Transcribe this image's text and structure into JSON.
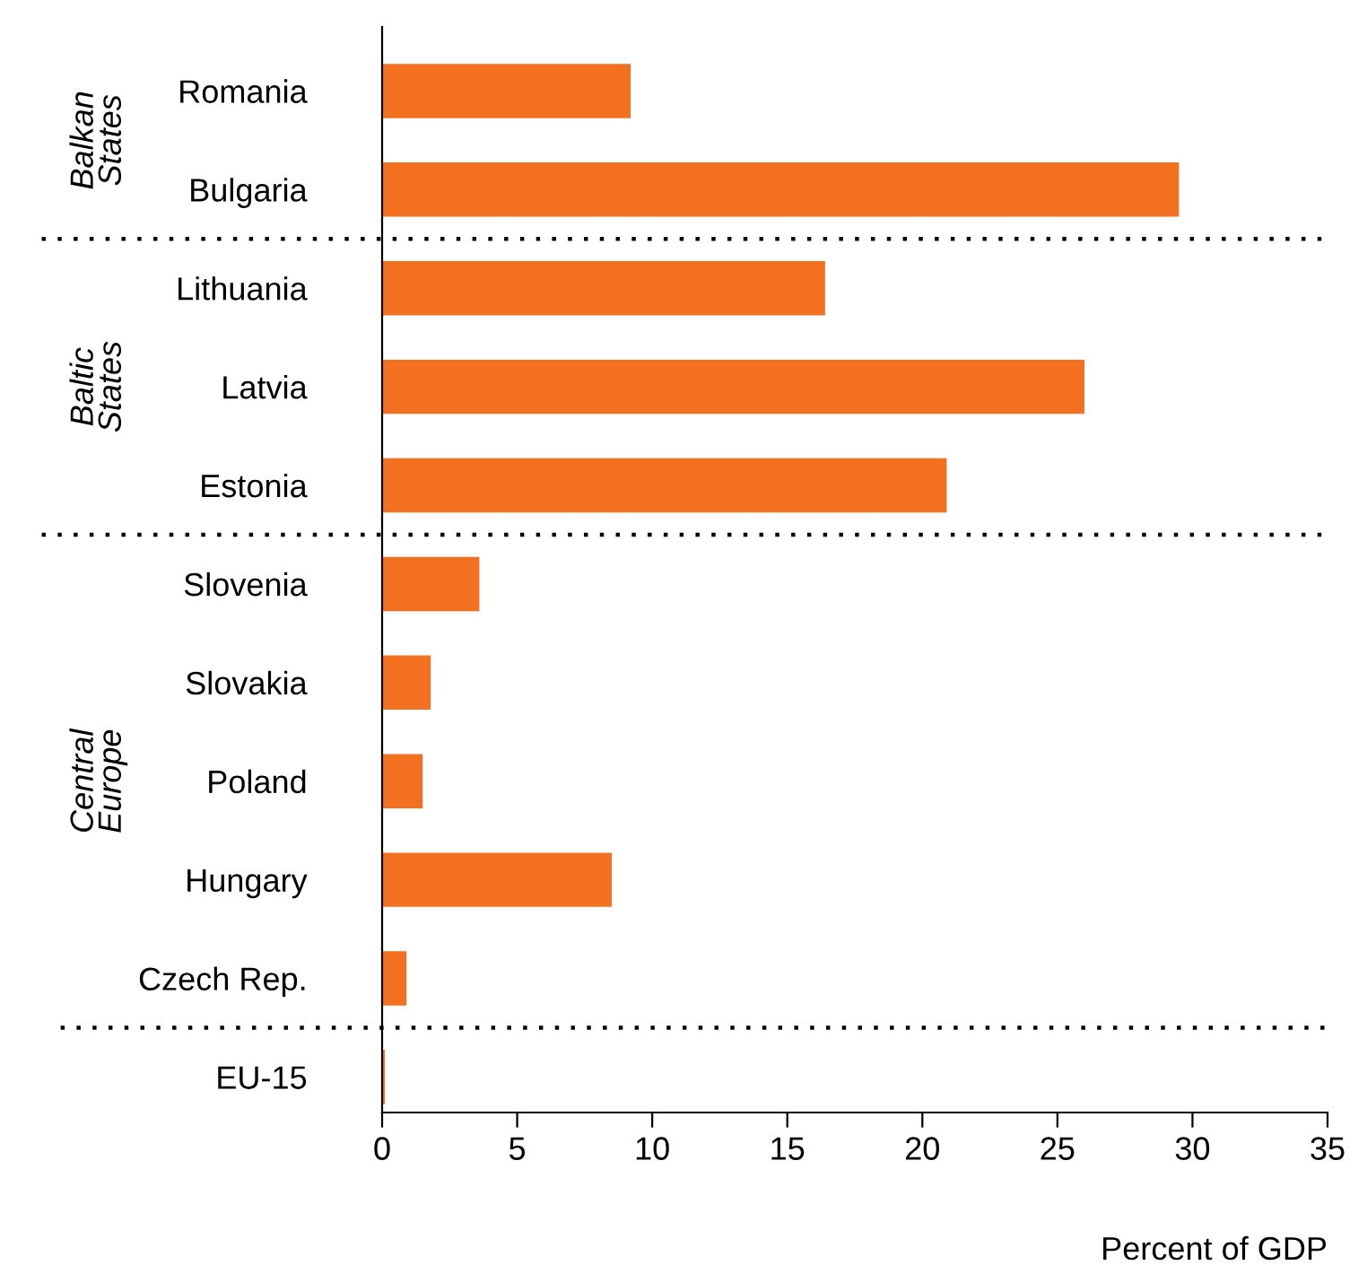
{
  "chart_data": {
    "type": "bar",
    "orientation": "horizontal",
    "categories": [
      "Romania",
      "Bulgaria",
      "Lithuania",
      "Latvia",
      "Estonia",
      "Slovenia",
      "Slovakia",
      "Poland",
      "Hungary",
      "Czech Rep.",
      "EU-15"
    ],
    "values": [
      9.2,
      29.5,
      16.4,
      26.0,
      20.9,
      3.6,
      1.8,
      1.5,
      8.5,
      0.9,
      0.1
    ],
    "color": "#f37021",
    "xlim": [
      0,
      35
    ],
    "xticks": [
      0,
      5,
      10,
      15,
      20,
      25,
      30,
      35
    ],
    "xlabel": "Percent of GDP",
    "annotations": [
      "Balkan\nStates",
      "Baltic\nStates",
      "Central\nEurope"
    ],
    "grid": false,
    "legend": false
  }
}
